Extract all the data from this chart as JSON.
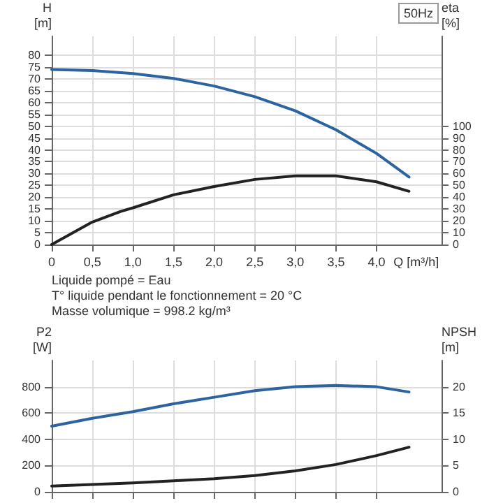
{
  "chart_data": [
    {
      "type": "line",
      "xlabel": "Q [m³/h]",
      "ylabel": "H\n[m]",
      "y2label": "eta\n[%]",
      "annotations": [
        "50Hz"
      ],
      "xlim": [
        0,
        4.8
      ],
      "xticks": [
        0,
        {
          "value": 0.5,
          "label": "0,5"
        },
        {
          "value": 1,
          "label": "1,0"
        },
        {
          "value": 1.5,
          "label": "1,5"
        },
        {
          "value": 2,
          "label": "2,0"
        },
        {
          "value": 2.5,
          "label": "2,5"
        },
        {
          "value": 3,
          "label": "3,0"
        },
        {
          "value": 3.5,
          "label": "3,5"
        },
        {
          "value": 4,
          "label": "4,0"
        }
      ],
      "ylim": [
        0,
        88
      ],
      "yticks": [
        0,
        5,
        10,
        15,
        20,
        25,
        30,
        35,
        40,
        45,
        50,
        55,
        60,
        65,
        70,
        75,
        80
      ],
      "y2lim": [
        0,
        176
      ],
      "y2ticks": [
        0,
        10,
        20,
        30,
        40,
        50,
        60,
        70,
        80,
        90,
        100
      ],
      "grid": true,
      "marker": "none",
      "line_style": "solid",
      "series": [
        {
          "color": "#2d64a0",
          "x": [
            0,
            0.5,
            1,
            1.5,
            2,
            2.5,
            3,
            3.5,
            4,
            4.4
          ],
          "values": [
            74,
            73.5,
            72.3,
            70.2,
            67,
            62.5,
            56.5,
            48.5,
            38.5,
            28.5
          ]
        },
        {
          "color": "#222222",
          "axis": "y2",
          "x": [
            0,
            0.5,
            0.85,
            1,
            1.5,
            2,
            2.5,
            3,
            3.25,
            3.5,
            4,
            4.4
          ],
          "values": [
            0,
            19,
            28,
            31,
            42,
            49,
            55,
            58,
            58,
            58,
            53,
            45
          ]
        }
      ]
    },
    {
      "type": "line",
      "ylabel": "P2\n[W]",
      "y2label": "NPSH\n[m]",
      "annotations": [
        "Liquide pompé = Eau",
        "T° liquide pendant le fonctionnement = 20 °C",
        "Masse volumique = 998.2 kg/m³"
      ],
      "xlim": [
        0,
        4.8
      ],
      "xticks": [
        0,
        0.5,
        1,
        1.5,
        2,
        2.5,
        3,
        3.5,
        4
      ],
      "tick_labels": "y",
      "ylim": [
        0,
        1000
      ],
      "yticks": [
        0,
        200,
        400,
        600,
        800
      ],
      "y2lim": [
        0,
        25
      ],
      "y2ticks": [
        0,
        5,
        10,
        15,
        20
      ],
      "grid": true,
      "marker": "none",
      "line_style": "solid",
      "series": [
        {
          "color": "#2d64a0",
          "x": [
            0,
            0.5,
            1,
            1.5,
            2,
            2.5,
            3,
            3.5,
            4,
            4.4
          ],
          "values": [
            500,
            560,
            610,
            670,
            720,
            770,
            800,
            810,
            800,
            760
          ]
        },
        {
          "color": "#222222",
          "axis": "y2",
          "x": [
            0,
            0.5,
            1,
            1.5,
            2,
            2.5,
            3,
            3.5,
            4,
            4.4
          ],
          "values": [
            1.1,
            1.4,
            1.7,
            2.1,
            2.5,
            3.1,
            4.0,
            5.2,
            6.9,
            8.5
          ]
        }
      ]
    }
  ]
}
